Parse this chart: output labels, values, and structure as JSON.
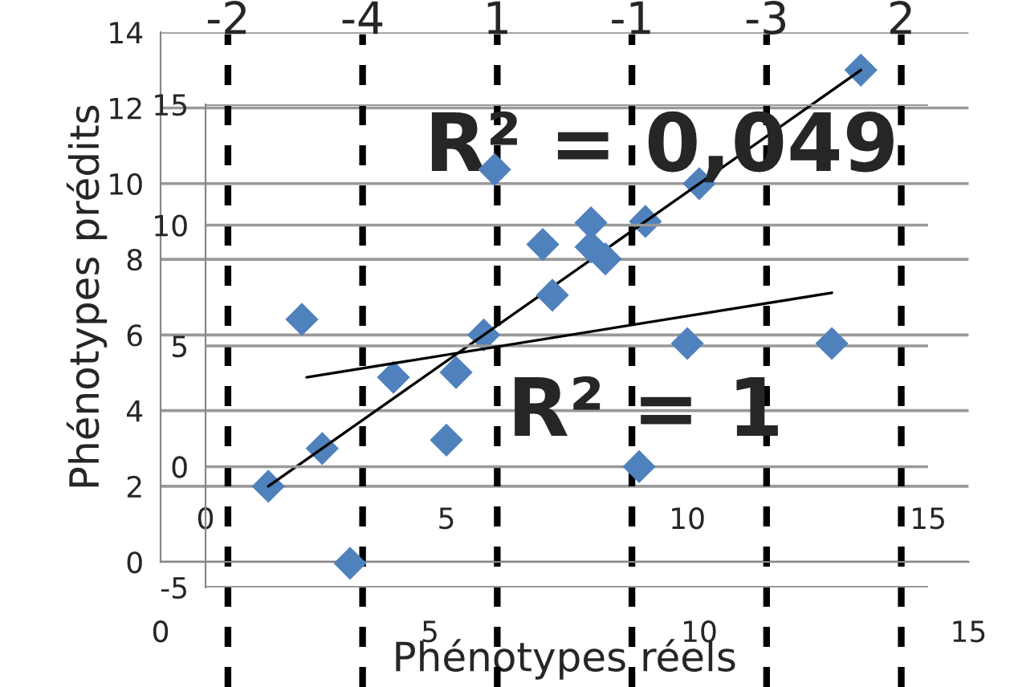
{
  "chart_data": [
    {
      "type": "scatter",
      "xlabel": "Phénotypes réels",
      "ylabel": "Phénotypes prédits",
      "xlim": [
        0,
        15
      ],
      "ylim": [
        0,
        14
      ],
      "xticks": [
        0,
        5,
        10,
        15
      ],
      "yticks": [
        0,
        2,
        4,
        6,
        8,
        10,
        12,
        14
      ],
      "grid": "y",
      "series": [
        {
          "color": "#4f81bd",
          "marker": "diamond",
          "x": [
            2,
            3,
            6,
            9,
            10,
            13
          ],
          "values": [
            2,
            3,
            6,
            9,
            10,
            13
          ]
        },
        {
          "type": "line",
          "marker": "none",
          "color": "#000000",
          "x": [
            2,
            13
          ],
          "values": [
            2,
            13
          ]
        }
      ],
      "ref_lines": [
        {
          "axis": "x",
          "value": 1.25,
          "color": "#000000",
          "line_style": "dashed"
        },
        {
          "axis": "x",
          "value": 3.75,
          "color": "#000000",
          "line_style": "dashed"
        },
        {
          "axis": "x",
          "value": 6.25,
          "color": "#000000",
          "line_style": "dashed"
        },
        {
          "axis": "x",
          "value": 8.75,
          "color": "#000000",
          "line_style": "dashed"
        },
        {
          "axis": "x",
          "value": 11.25,
          "color": "#000000",
          "line_style": "dashed"
        },
        {
          "axis": "x",
          "value": 13.75,
          "color": "#000000",
          "line_style": "dashed"
        }
      ],
      "annotations": [
        "R² = 0,049",
        "R² = 1",
        "-2",
        "-4",
        "1",
        "-1",
        "-3",
        "2"
      ]
    },
    {
      "type": "scatter",
      "xlim": [
        0,
        15
      ],
      "ylim": [
        -5,
        15
      ],
      "xticks": [
        0,
        5,
        10,
        15
      ],
      "yticks": [
        -5,
        0,
        5,
        10,
        15
      ],
      "grid": "y",
      "series": [
        {
          "color": "#4f81bd",
          "marker": "diamond",
          "x": [
            2,
            3.9,
            5.2,
            5,
            6,
            7,
            7.2,
            8,
            8,
            8.3,
            9,
            10,
            13,
            3
          ],
          "values": [
            6.1,
            3.7,
            3.9,
            1.1,
            12.3,
            9.2,
            7.1,
            10.1,
            9.1,
            8.6,
            0,
            5.1,
            5.1,
            -4
          ]
        },
        {
          "type": "line",
          "marker": "none",
          "color": "#000000",
          "x": [
            2.1,
            13
          ],
          "values": [
            3.7,
            7.2
          ]
        }
      ]
    }
  ]
}
